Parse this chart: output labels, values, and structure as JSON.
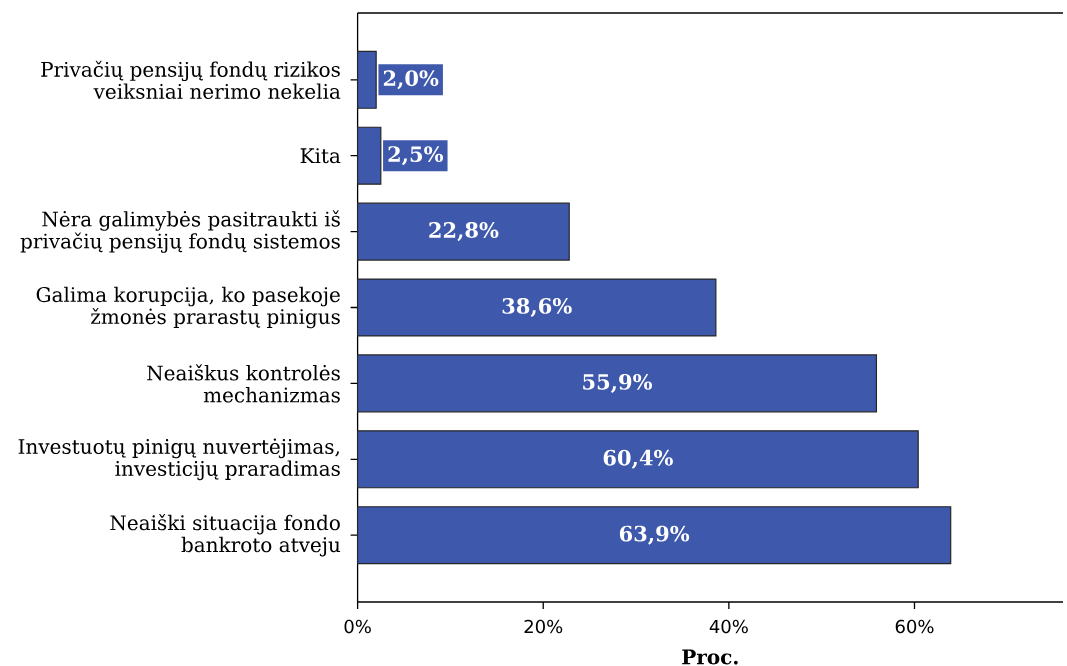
{
  "chart_data": {
    "type": "bar",
    "orientation": "horizontal",
    "xlabel": "Proc.",
    "categories": [
      "Privačių pensijų fondų rizikos veiksniai nerimo nekelia",
      "Kita",
      "Nėra galimybės pasitraukti iš privačių pensijų fondų sistemos",
      "Galima korupcija, ko pasekoje žmonės prarastų pinigus",
      "Neaiškus kontrolės mechanizmas",
      "Investuotų pinigų nuvertėjimas, investicijų praradimas",
      "Neaiški situacija fondo bankroto atveju"
    ],
    "values": [
      2.0,
      2.5,
      22.8,
      38.6,
      55.9,
      60.4,
      63.9
    ],
    "value_labels": [
      "2,0%",
      "2,5%",
      "22,8%",
      "38,6%",
      "55,9%",
      "60,4%",
      "63,9%"
    ],
    "color": "#3e58ab",
    "xlim": [
      0,
      76
    ],
    "xticks": [
      {
        "value": 0,
        "label": "0%"
      },
      {
        "value": 20,
        "label": "20%"
      },
      {
        "value": 40,
        "label": "40%"
      },
      {
        "value": 60,
        "label": "60%"
      }
    ]
  }
}
